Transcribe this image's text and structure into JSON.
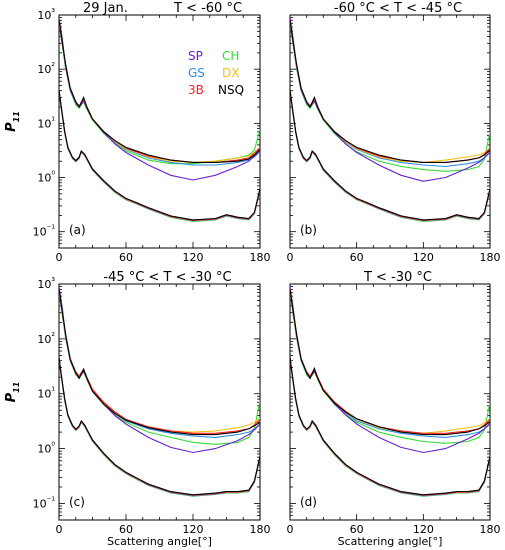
{
  "figure": {
    "ylabel_main": "P",
    "ylabel_sub": "11",
    "xlabel": "Scattering angle[°]"
  },
  "legend": [
    {
      "name": "SP",
      "color": "#6a1fd0"
    },
    {
      "name": "CH",
      "color": "#33dd33"
    },
    {
      "name": "GS",
      "color": "#2f8fe8"
    },
    {
      "name": "DX",
      "color": "#f0c419"
    },
    {
      "name": "3B",
      "color": "#ff2020"
    },
    {
      "name": "NSQ",
      "color": "#000000"
    }
  ],
  "chart_data": [
    {
      "type": "line",
      "panel_label": "(a)",
      "title_left": "29 Jan.",
      "title": "T < -60 °C",
      "xlim": [
        0,
        180
      ],
      "ylim": [
        0.05,
        1000
      ],
      "yscale": "log",
      "xticks": [
        "0",
        "60",
        "120",
        "180"
      ],
      "yticks": [
        "10⁻¹",
        "10⁰",
        "10¹",
        "10²",
        "10³"
      ],
      "curves": {
        "upper": {
          "x": [
            0,
            3,
            6,
            10,
            15,
            18,
            22,
            25,
            30,
            40,
            50,
            60,
            80,
            100,
            120,
            140,
            160,
            170,
            175,
            180
          ],
          "NSQ": [
            800,
            300,
            120,
            45,
            25,
            20,
            30,
            20,
            12,
            7,
            4.8,
            3.6,
            2.6,
            2.1,
            1.9,
            1.9,
            2.0,
            2.2,
            2.6,
            3.3
          ],
          "SP": [
            900,
            350,
            110,
            42,
            24,
            20,
            26,
            19,
            12,
            6.8,
            4.2,
            2.9,
            1.7,
            1.1,
            0.9,
            1.1,
            1.6,
            2.0,
            2.5,
            3.2
          ],
          "CH": [
            700,
            260,
            100,
            40,
            22,
            19,
            25,
            18,
            11.5,
            6.5,
            4.3,
            3.1,
            2.1,
            1.8,
            1.8,
            2.0,
            2.3,
            2.6,
            3.2,
            8.0
          ],
          "GS": [
            750,
            280,
            105,
            41,
            23,
            20,
            26,
            19,
            12,
            6.9,
            4.5,
            3.3,
            2.3,
            1.9,
            1.7,
            1.7,
            1.9,
            2.1,
            2.4,
            3.0
          ],
          "DX": [
            780,
            290,
            110,
            43,
            24,
            20,
            27,
            19,
            12,
            7.0,
            4.6,
            3.4,
            2.4,
            2.0,
            1.9,
            2.0,
            2.3,
            2.5,
            2.9,
            3.5
          ],
          "3B": [
            820,
            310,
            115,
            44,
            25,
            21,
            28,
            20,
            12.2,
            7.1,
            4.8,
            3.5,
            2.5,
            2.1,
            1.9,
            1.9,
            2.1,
            2.3,
            2.8,
            3.6
          ]
        },
        "lower": {
          "x": [
            0,
            2,
            5,
            8,
            12,
            15,
            18,
            20,
            23,
            26,
            30,
            40,
            50,
            60,
            70,
            80,
            100,
            120,
            140,
            150,
            160,
            170,
            175,
            180
          ],
          "all": [
            40,
            20,
            7,
            3.5,
            2.3,
            2.0,
            2.3,
            3.0,
            2.6,
            2.0,
            1.4,
            0.85,
            0.55,
            0.4,
            0.33,
            0.27,
            0.19,
            0.16,
            0.17,
            0.2,
            0.18,
            0.17,
            0.22,
            0.6
          ]
        }
      }
    },
    {
      "type": "line",
      "panel_label": "(b)",
      "title": "-60 °C < T < -45 °C",
      "xlim": [
        0,
        180
      ],
      "ylim": [
        0.05,
        1000
      ],
      "yscale": "log",
      "xticks": [
        "0",
        "60",
        "120",
        "180"
      ],
      "curves": {
        "upper": {
          "x": [
            0,
            3,
            6,
            10,
            15,
            18,
            22,
            25,
            30,
            40,
            50,
            60,
            80,
            100,
            120,
            140,
            160,
            170,
            175,
            180
          ],
          "NSQ": [
            800,
            300,
            120,
            45,
            25,
            20,
            30,
            20,
            12,
            7,
            4.8,
            3.6,
            2.6,
            2.1,
            1.9,
            1.9,
            2.1,
            2.3,
            2.6,
            3.2
          ],
          "SP": [
            900,
            350,
            110,
            42,
            24,
            20,
            26,
            19,
            12,
            6.8,
            4.2,
            2.9,
            1.7,
            1.1,
            0.85,
            1.0,
            1.5,
            1.9,
            2.3,
            3.0
          ],
          "CH": [
            700,
            260,
            100,
            40,
            22,
            19,
            25,
            18,
            11.5,
            6.5,
            4.2,
            3.0,
            2.0,
            1.6,
            1.4,
            1.3,
            1.4,
            1.6,
            2.2,
            7.0
          ],
          "GS": [
            750,
            280,
            105,
            41,
            23,
            20,
            26,
            19,
            12,
            6.9,
            4.5,
            3.3,
            2.3,
            1.9,
            1.7,
            1.6,
            1.8,
            2.0,
            2.3,
            2.9
          ],
          "DX": [
            780,
            290,
            110,
            43,
            24,
            20,
            27,
            19,
            12,
            7.0,
            4.6,
            3.4,
            2.4,
            2.0,
            1.9,
            2.1,
            2.4,
            2.6,
            2.9,
            3.4
          ],
          "3B": [
            820,
            310,
            115,
            44,
            25,
            21,
            28,
            20,
            12.2,
            7.1,
            4.8,
            3.5,
            2.5,
            2.1,
            1.9,
            1.9,
            2.1,
            2.3,
            2.7,
            3.5
          ]
        },
        "lower": {
          "x": [
            0,
            2,
            5,
            8,
            12,
            15,
            18,
            20,
            23,
            26,
            30,
            40,
            50,
            60,
            70,
            80,
            100,
            120,
            140,
            150,
            160,
            170,
            175,
            180
          ],
          "all": [
            40,
            20,
            7,
            3.5,
            2.3,
            2.0,
            2.3,
            3.0,
            2.6,
            2.0,
            1.4,
            0.85,
            0.55,
            0.4,
            0.33,
            0.27,
            0.19,
            0.16,
            0.17,
            0.2,
            0.18,
            0.17,
            0.22,
            0.6
          ]
        }
      }
    },
    {
      "type": "line",
      "panel_label": "(c)",
      "title": "-45 °C < T < -30 °C",
      "xlim": [
        0,
        180
      ],
      "ylim": [
        0.05,
        1000
      ],
      "yscale": "log",
      "xticks": [
        "0",
        "60",
        "120",
        "180"
      ],
      "yticks": [
        "10⁻¹",
        "10⁰",
        "10¹",
        "10²",
        "10³"
      ],
      "curves": {
        "upper": {
          "x": [
            0,
            3,
            6,
            10,
            15,
            18,
            22,
            25,
            30,
            40,
            50,
            60,
            80,
            100,
            120,
            140,
            160,
            170,
            175,
            180
          ],
          "NSQ": [
            800,
            300,
            120,
            42,
            24,
            19,
            28,
            19,
            11,
            6.5,
            4.4,
            3.3,
            2.4,
            2.0,
            1.8,
            1.8,
            2.0,
            2.3,
            2.6,
            3.0
          ],
          "SP": [
            900,
            350,
            110,
            42,
            24,
            20,
            26,
            19,
            11.5,
            6.5,
            4.0,
            2.8,
            1.6,
            1.05,
            0.85,
            1.0,
            1.4,
            1.8,
            2.2,
            2.8
          ],
          "CH": [
            700,
            260,
            100,
            40,
            22,
            19,
            25,
            18,
            11,
            6.3,
            4.1,
            3.0,
            2.0,
            1.6,
            1.3,
            1.2,
            1.3,
            1.6,
            2.3,
            7.5
          ],
          "GS": [
            750,
            280,
            105,
            41,
            23,
            20,
            26,
            19,
            11.5,
            6.7,
            4.4,
            3.2,
            2.3,
            1.9,
            1.7,
            1.6,
            1.8,
            2.0,
            2.3,
            2.8
          ],
          "DX": [
            780,
            290,
            110,
            43,
            24,
            20,
            27,
            19,
            11.8,
            6.9,
            4.6,
            3.4,
            2.4,
            2.1,
            2.0,
            2.1,
            2.4,
            2.7,
            3.0,
            3.6
          ],
          "3B": [
            820,
            310,
            115,
            44,
            25,
            21,
            28,
            20,
            12,
            7.0,
            4.7,
            3.4,
            2.5,
            2.1,
            1.9,
            1.9,
            2.1,
            2.3,
            2.7,
            3.4
          ]
        },
        "lower": {
          "x": [
            0,
            2,
            5,
            8,
            12,
            15,
            18,
            20,
            23,
            26,
            30,
            40,
            50,
            60,
            70,
            80,
            100,
            120,
            140,
            150,
            160,
            170,
            175,
            180
          ],
          "all": [
            45,
            22,
            8,
            4.0,
            2.6,
            2.2,
            2.5,
            3.1,
            2.6,
            2.0,
            1.4,
            0.8,
            0.5,
            0.36,
            0.28,
            0.22,
            0.16,
            0.14,
            0.15,
            0.16,
            0.16,
            0.17,
            0.25,
            0.7
          ]
        }
      }
    },
    {
      "type": "line",
      "panel_label": "(d)",
      "title": "T < -30 °C",
      "xlim": [
        0,
        180
      ],
      "ylim": [
        0.05,
        1000
      ],
      "yscale": "log",
      "xticks": [
        "0",
        "60",
        "120",
        "180"
      ],
      "curves": {
        "upper": {
          "x": [
            0,
            3,
            6,
            10,
            15,
            18,
            22,
            25,
            30,
            40,
            50,
            60,
            80,
            100,
            120,
            140,
            160,
            170,
            175,
            180
          ],
          "NSQ": [
            800,
            300,
            120,
            43,
            24,
            19,
            29,
            19,
            11.5,
            6.8,
            4.6,
            3.5,
            2.5,
            2.0,
            1.8,
            1.8,
            2.0,
            2.3,
            2.6,
            3.1
          ],
          "SP": [
            900,
            350,
            110,
            42,
            24,
            20,
            26,
            19,
            11.8,
            6.6,
            4.1,
            2.8,
            1.6,
            1.05,
            0.85,
            1.0,
            1.5,
            1.9,
            2.3,
            2.9
          ],
          "CH": [
            700,
            260,
            100,
            40,
            22,
            19,
            25,
            18,
            11.2,
            6.4,
            4.2,
            3.0,
            2.0,
            1.6,
            1.35,
            1.25,
            1.35,
            1.6,
            2.2,
            7.0
          ],
          "GS": [
            750,
            280,
            105,
            41,
            23,
            20,
            26,
            19,
            11.8,
            6.8,
            4.5,
            3.2,
            2.3,
            1.9,
            1.7,
            1.6,
            1.8,
            2.0,
            2.3,
            2.8
          ],
          "DX": [
            780,
            290,
            110,
            43,
            24,
            20,
            27,
            19,
            12,
            7.0,
            4.6,
            3.4,
            2.4,
            2.0,
            1.9,
            2.1,
            2.4,
            2.6,
            2.9,
            3.5
          ],
          "3B": [
            820,
            310,
            115,
            44,
            25,
            21,
            28,
            20,
            12.1,
            7.1,
            4.8,
            3.5,
            2.5,
            2.1,
            1.9,
            1.9,
            2.1,
            2.3,
            2.7,
            3.4
          ]
        },
        "lower": {
          "x": [
            0,
            2,
            5,
            8,
            12,
            15,
            18,
            20,
            23,
            26,
            30,
            40,
            50,
            60,
            70,
            80,
            100,
            120,
            140,
            150,
            160,
            170,
            175,
            180
          ],
          "all": [
            45,
            22,
            8,
            4.0,
            2.6,
            2.2,
            2.5,
            3.1,
            2.6,
            2.0,
            1.4,
            0.8,
            0.5,
            0.36,
            0.28,
            0.22,
            0.16,
            0.14,
            0.15,
            0.16,
            0.16,
            0.17,
            0.25,
            0.7
          ]
        }
      }
    }
  ]
}
